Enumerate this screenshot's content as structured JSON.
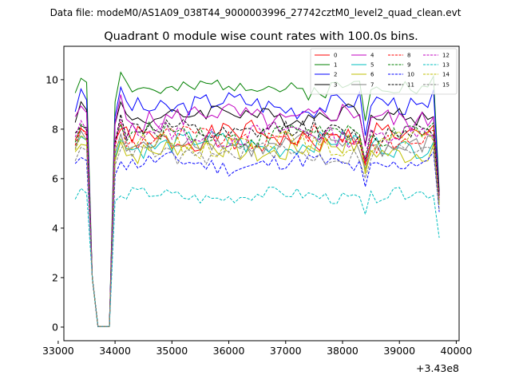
{
  "chart_data": {
    "type": "line",
    "suptitle": "Data file: modeM0/AS1A09_038T44_9000003996_27742cztM0_level2_quad_clean.evt",
    "title": "Quadrant 0 module wise count rates with 100.0s bins.",
    "xlabel": "",
    "ylabel": "",
    "offset_text": "+3.43e8",
    "x_offset": 343000000,
    "xlim": [
      33100,
      40050
    ],
    "ylim": [
      -0.55,
      11.35
    ],
    "x_ticks": [
      33000,
      34000,
      35000,
      36000,
      37000,
      38000,
      39000,
      40000
    ],
    "y_ticks": [
      0,
      2,
      4,
      6,
      8,
      10
    ],
    "legend": {
      "placement": "top-right",
      "ncol": 4
    },
    "series": [
      {
        "name": "0",
        "color": "#ff0000",
        "dashed": false,
        "base": 7.7,
        "amp": 0.45,
        "gap": 8.0,
        "end": 5.4,
        "seed": 1
      },
      {
        "name": "1",
        "color": "#008000",
        "dashed": false,
        "base": 9.7,
        "amp": 0.35,
        "gap": 10.3,
        "end": 5.8,
        "seed": 2
      },
      {
        "name": "2",
        "color": "#0000ff",
        "dashed": false,
        "base": 9.0,
        "amp": 0.4,
        "gap": 9.7,
        "end": 5.6,
        "seed": 3
      },
      {
        "name": "3",
        "color": "#000000",
        "dashed": false,
        "base": 8.6,
        "amp": 0.35,
        "gap": 9.1,
        "end": 5.7,
        "seed": 4
      },
      {
        "name": "4",
        "color": "#c000c0",
        "dashed": false,
        "base": 8.5,
        "amp": 0.45,
        "gap": 9.4,
        "end": 5.6,
        "seed": 5
      },
      {
        "name": "5",
        "color": "#00bfbf",
        "dashed": false,
        "base": 7.4,
        "amp": 0.4,
        "gap": 7.6,
        "end": 5.3,
        "seed": 6
      },
      {
        "name": "6",
        "color": "#bfbf00",
        "dashed": false,
        "base": 7.2,
        "amp": 0.45,
        "gap": 7.5,
        "end": 5.2,
        "seed": 7
      },
      {
        "name": "7",
        "color": "#7f7f7f",
        "dashed": false,
        "base": 7.4,
        "amp": 0.4,
        "gap": 7.8,
        "end": 5.3,
        "seed": 8
      },
      {
        "name": "8",
        "color": "#ff0000",
        "dashed": true,
        "base": 7.6,
        "amp": 0.4,
        "gap": 8.3,
        "end": 5.5,
        "seed": 9
      },
      {
        "name": "9",
        "color": "#008000",
        "dashed": true,
        "base": 7.8,
        "amp": 0.4,
        "gap": 8.2,
        "end": 5.5,
        "seed": 10
      },
      {
        "name": "10",
        "color": "#0000ff",
        "dashed": true,
        "base": 6.6,
        "amp": 0.35,
        "gap": 6.7,
        "end": 4.9,
        "seed": 11
      },
      {
        "name": "11",
        "color": "#000000",
        "dashed": true,
        "base": 7.9,
        "amp": 0.4,
        "gap": 8.6,
        "end": 5.6,
        "seed": 12
      },
      {
        "name": "12",
        "color": "#c000c0",
        "dashed": true,
        "base": 7.8,
        "amp": 0.4,
        "gap": 8.4,
        "end": 5.5,
        "seed": 13
      },
      {
        "name": "13",
        "color": "#00bfbf",
        "dashed": true,
        "base": 5.3,
        "amp": 0.25,
        "gap": 5.3,
        "end": 3.8,
        "seed": 14
      },
      {
        "name": "14",
        "color": "#bfbf00",
        "dashed": true,
        "base": 7.4,
        "amp": 0.4,
        "gap": 7.6,
        "end": 5.2,
        "seed": 15
      },
      {
        "name": "15",
        "color": "#7f7f7f",
        "dashed": true,
        "base": 7.0,
        "amp": 0.35,
        "gap": 7.2,
        "end": 5.0,
        "seed": 16
      }
    ]
  }
}
